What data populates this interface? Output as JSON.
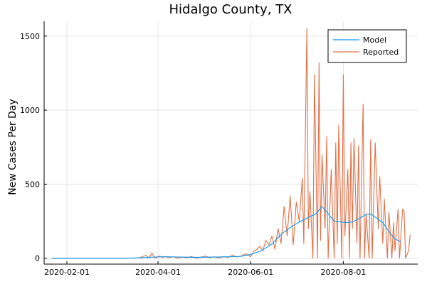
{
  "chart_data": {
    "type": "line",
    "title": "Hidalgo County, TX",
    "xlabel": "",
    "ylabel": "New Cases Per Day",
    "x_ticks": [
      "2020-02-01",
      "2020-04-01",
      "2020-06-01",
      "2020-08-01"
    ],
    "y_ticks": [
      0,
      500,
      1000,
      1500
    ],
    "xlim": [
      "2020-01-17",
      "2020-09-19"
    ],
    "ylim": [
      -40,
      1600
    ],
    "grid": true,
    "legend_position": "top-right",
    "colors": {
      "Model": "#009af9",
      "Reported": "#e26f46"
    },
    "series": [
      {
        "name": "Model",
        "x": [
          "2020-01-22",
          "2020-03-11",
          "2020-03-20",
          "2020-03-25",
          "2020-03-30",
          "2020-04-05",
          "2020-04-15",
          "2020-04-25",
          "2020-05-05",
          "2020-05-15",
          "2020-05-25",
          "2020-06-01",
          "2020-06-08",
          "2020-06-15",
          "2020-06-22",
          "2020-06-29",
          "2020-07-04",
          "2020-07-09",
          "2020-07-14",
          "2020-07-18",
          "2020-07-22",
          "2020-07-26",
          "2020-07-30",
          "2020-08-03",
          "2020-08-07",
          "2020-08-11",
          "2020-08-15",
          "2020-08-19",
          "2020-08-23",
          "2020-08-27",
          "2020-08-31",
          "2020-09-04",
          "2020-09-08"
        ],
        "y": [
          0,
          0,
          2,
          5,
          8,
          10,
          8,
          6,
          7,
          9,
          12,
          25,
          50,
          95,
          170,
          220,
          250,
          275,
          300,
          350,
          300,
          250,
          245,
          240,
          245,
          265,
          290,
          300,
          270,
          240,
          180,
          130,
          110
        ]
      },
      {
        "name": "Reported",
        "x": [
          "2020-01-22",
          "2020-03-10",
          "2020-03-20",
          "2020-03-24",
          "2020-03-26",
          "2020-03-28",
          "2020-03-30",
          "2020-04-02",
          "2020-04-04",
          "2020-04-06",
          "2020-04-08",
          "2020-04-11",
          "2020-04-14",
          "2020-04-17",
          "2020-04-20",
          "2020-04-23",
          "2020-04-26",
          "2020-04-29",
          "2020-05-02",
          "2020-05-05",
          "2020-05-08",
          "2020-05-11",
          "2020-05-14",
          "2020-05-17",
          "2020-05-20",
          "2020-05-23",
          "2020-05-26",
          "2020-05-29",
          "2020-06-01",
          "2020-06-03",
          "2020-06-05",
          "2020-06-07",
          "2020-06-09",
          "2020-06-11",
          "2020-06-13",
          "2020-06-15",
          "2020-06-17",
          "2020-06-19",
          "2020-06-21",
          "2020-06-23",
          "2020-06-25",
          "2020-06-27",
          "2020-06-29",
          "2020-07-01",
          "2020-07-03",
          "2020-07-05",
          "2020-07-06",
          "2020-07-08",
          "2020-07-09",
          "2020-07-10",
          "2020-07-12",
          "2020-07-13",
          "2020-07-15",
          "2020-07-16",
          "2020-07-17",
          "2020-07-18",
          "2020-07-20",
          "2020-07-21",
          "2020-07-22",
          "2020-07-24",
          "2020-07-26",
          "2020-07-27",
          "2020-07-28",
          "2020-07-29",
          "2020-07-31",
          "2020-08-01",
          "2020-08-02",
          "2020-08-04",
          "2020-08-05",
          "2020-08-06",
          "2020-08-07",
          "2020-08-08",
          "2020-08-10",
          "2020-08-11",
          "2020-08-12",
          "2020-08-14",
          "2020-08-15",
          "2020-08-16",
          "2020-08-18",
          "2020-08-19",
          "2020-08-20",
          "2020-08-22",
          "2020-08-24",
          "2020-08-25",
          "2020-08-27",
          "2020-08-28",
          "2020-08-30",
          "2020-08-31",
          "2020-09-02",
          "2020-09-03",
          "2020-09-04",
          "2020-09-06",
          "2020-09-07",
          "2020-09-09",
          "2020-09-10",
          "2020-09-11",
          "2020-09-13",
          "2020-09-14"
        ],
        "y": [
          0,
          0,
          3,
          20,
          2,
          35,
          0,
          15,
          5,
          12,
          3,
          10,
          0,
          8,
          2,
          12,
          0,
          6,
          15,
          3,
          10,
          0,
          12,
          5,
          20,
          8,
          15,
          30,
          10,
          45,
          60,
          80,
          50,
          120,
          90,
          150,
          60,
          200,
          100,
          350,
          150,
          420,
          90,
          380,
          250,
          540,
          100,
          1550,
          200,
          450,
          0,
          1240,
          0,
          1320,
          120,
          700,
          200,
          820,
          0,
          600,
          0,
          780,
          100,
          900,
          0,
          1240,
          150,
          600,
          0,
          780,
          200,
          810,
          100,
          760,
          0,
          1040,
          0,
          300,
          0,
          800,
          0,
          780,
          200,
          550,
          100,
          400,
          0,
          310,
          0,
          240,
          50,
          330,
          0,
          330,
          320,
          0,
          50,
          160
        ]
      }
    ]
  }
}
